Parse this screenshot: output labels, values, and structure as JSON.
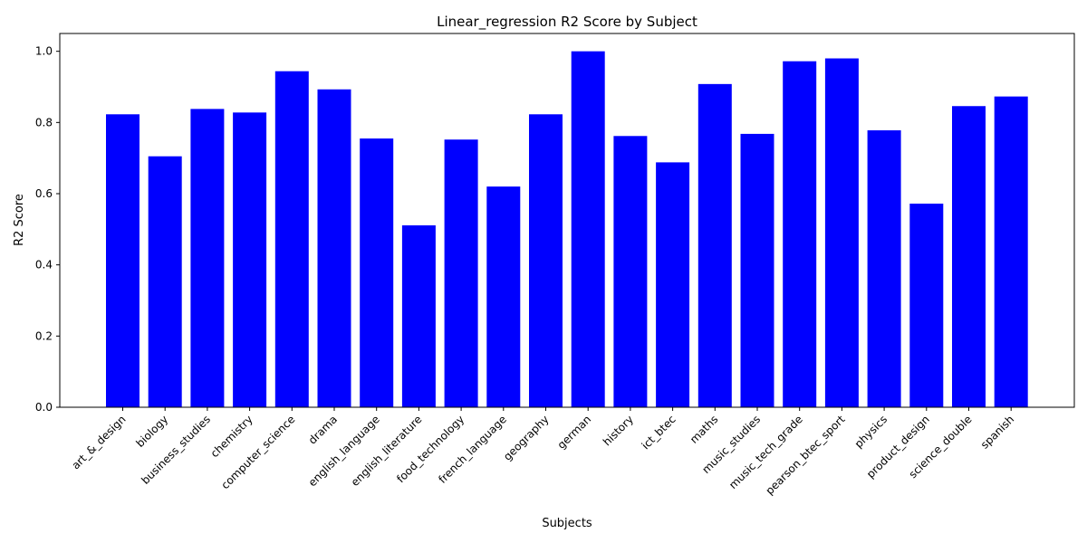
{
  "chart_data": {
    "type": "bar",
    "title": "Linear_regression R2 Score by Subject",
    "xlabel": "Subjects",
    "ylabel": "R2 Score",
    "ylim": [
      0,
      1.05
    ],
    "yticks": [
      "0.0",
      "0.2",
      "0.4",
      "0.6",
      "0.8",
      "1.0"
    ],
    "grid": false,
    "bar_color": "#0000ff",
    "categories": [
      "art_&_design",
      "biology",
      "business_studies",
      "chemistry",
      "computer_science",
      "drama",
      "english_language",
      "english_literature",
      "food_technology",
      "french_language",
      "geography",
      "german",
      "history",
      "ict_btec",
      "maths",
      "music_studies",
      "music_tech_grade",
      "pearson_btec_sport",
      "physics",
      "product_design",
      "science_double",
      "spanish"
    ],
    "values": [
      0.823,
      0.705,
      0.838,
      0.828,
      0.944,
      0.893,
      0.755,
      0.511,
      0.752,
      0.62,
      0.823,
      1.0,
      0.762,
      0.688,
      0.908,
      0.768,
      0.972,
      0.98,
      0.778,
      0.572,
      0.846,
      0.873
    ]
  }
}
